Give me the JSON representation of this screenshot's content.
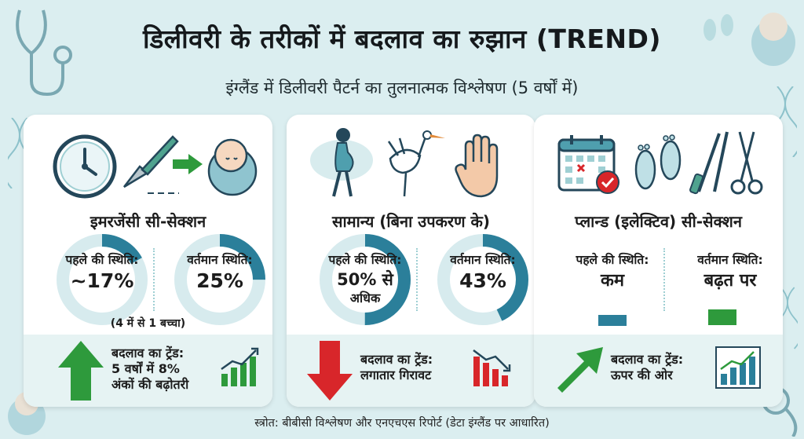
{
  "header": {
    "title": "डिलीवरी के तरीकों में बदलाव का रुझान (TREND)",
    "subtitle": "इंग्लैंड में डिलीवरी पैटर्न का तुलनात्मक विश्लेषण (5 वर्षों में)"
  },
  "cards": [
    {
      "title": "इमरजेंसी सी-सेक्शन",
      "before_label": "पहले की स्थिति:",
      "before_value": "~17%",
      "before_fraction": 0.17,
      "after_label": "वर्तमान स्थिति:",
      "after_value": "25%",
      "after_fraction": 0.25,
      "note": "(4 में से 1 बच्चा)",
      "trend_line1": "बदलाव का ट्रेंड:",
      "trend_line2": "5 वर्षों में 8%",
      "trend_line3": "अंकों की बढ़ोतरी",
      "trend_direction": "up",
      "icons": [
        "clock-icon",
        "scalpel-icon",
        "arrow-right-icon",
        "baby-icon"
      ]
    },
    {
      "title": "सामान्य (बिना उपकरण के)",
      "before_label": "पहले की स्थिति:",
      "before_value_line1": "50% से",
      "before_value_line2": "अधिक",
      "before_fraction": 0.5,
      "after_label": "वर्तमान स्थिति:",
      "after_value": "43%",
      "after_fraction": 0.43,
      "trend_line1": "बदलाव का ट्रेंड:",
      "trend_line2": "लगातार गिरावट",
      "trend_direction": "down",
      "icons": [
        "pregnant-woman-icon",
        "stork-icon",
        "hand-icon"
      ]
    },
    {
      "title": "प्लान्ड (इलेक्टिव) सी-सेक्शन",
      "before_label": "पहले की स्थिति:",
      "before_value": "कम",
      "after_label": "वर्तमान स्थिति:",
      "after_value": "बढ़त पर",
      "trend_line1": "बदलाव का ट्रेंड:",
      "trend_line2": "ऊपर की ओर",
      "trend_direction": "up",
      "icons": [
        "calendar-icon",
        "footprints-icon",
        "surgical-tools-icon"
      ]
    }
  ],
  "source": "स्त्रोत: बीबीसी विश्लेषण और एनएचएस रिपोर्ट (डेटा इंग्लैंड पर आधारित)",
  "colors": {
    "background": "#dbeef0",
    "ring_fill": "#2b7f9a",
    "ring_track": "#d7ebee",
    "up_green": "#2e9a3c",
    "down_red": "#d8262a",
    "flat_blue": "#2b7f9a"
  }
}
